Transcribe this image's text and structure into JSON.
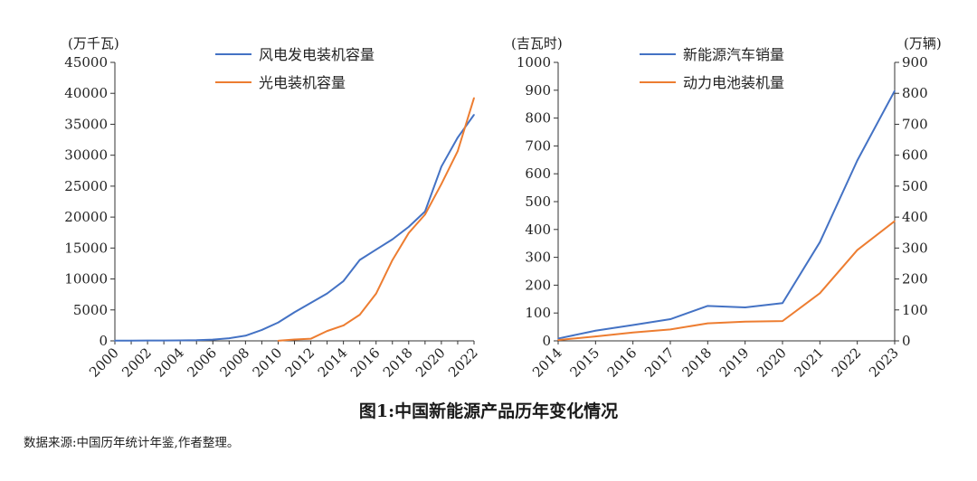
{
  "caption": "图1:中国新能源产品历年变化情况",
  "source": "数据来源:中国历年统计年鉴,作者整理。",
  "colors": {
    "blue": "#4472C4",
    "orange": "#ED7D31",
    "axis": "#333333"
  },
  "chart_data": [
    {
      "type": "line",
      "y_unit_label": "(万千瓦)",
      "ylim": [
        0,
        45000
      ],
      "y_ticks": [
        0,
        5000,
        10000,
        15000,
        20000,
        25000,
        30000,
        35000,
        40000,
        45000
      ],
      "x_ticks": [
        "2000",
        "2002",
        "2004",
        "2006",
        "2008",
        "2010",
        "2012",
        "2014",
        "2016",
        "2018",
        "2020",
        "2022"
      ],
      "x": [
        2000,
        2001,
        2002,
        2003,
        2004,
        2005,
        2006,
        2007,
        2008,
        2009,
        2010,
        2011,
        2012,
        2013,
        2014,
        2015,
        2016,
        2017,
        2018,
        2019,
        2020,
        2021,
        2022
      ],
      "legend_position": "top-center",
      "grid": false,
      "series": [
        {
          "name": "风电发电装机容量",
          "color": "#4472C4",
          "values": [
            34,
            40,
            47,
            55,
            76,
            106,
            207,
            420,
            839,
            1760,
            2958,
            4623,
            6142,
            7652,
            9657,
            13075,
            14747,
            16400,
            18426,
            20915,
            28153,
            32848,
            36544
          ]
        },
        {
          "name": "光电装机容量",
          "color": "#ED7D31",
          "values": [
            null,
            null,
            null,
            null,
            null,
            null,
            null,
            null,
            null,
            null,
            26,
            222,
            341,
            1589,
            2486,
            4218,
            7631,
            13042,
            17433,
            20418,
            25343,
            30656,
            39261
          ]
        }
      ]
    },
    {
      "type": "line",
      "y_unit_label": "(吉瓦时)",
      "y2_unit_label": "(万辆)",
      "ylim": [
        0,
        1000
      ],
      "y2lim": [
        0,
        900
      ],
      "y_ticks": [
        0,
        100,
        200,
        300,
        400,
        500,
        600,
        700,
        800,
        900,
        1000
      ],
      "y2_ticks": [
        0,
        100,
        200,
        300,
        400,
        500,
        600,
        700,
        800,
        900
      ],
      "x_ticks": [
        "2014",
        "2015",
        "2016",
        "2017",
        "2018",
        "2019",
        "2020",
        "2021",
        "2022",
        "2023"
      ],
      "x": [
        2014,
        2015,
        2016,
        2017,
        2018,
        2019,
        2020,
        2021,
        2022,
        2023
      ],
      "legend_position": "top-center",
      "grid": false,
      "series": [
        {
          "name": "新能源汽车销量",
          "color": "#4472C4",
          "axis": "right",
          "values": [
            7.5,
            33,
            51,
            70,
            113,
            108,
            122,
            319,
            583,
            808
          ]
        },
        {
          "name": "动力电池装机量",
          "color": "#ED7D31",
          "axis": "left",
          "values": [
            3,
            16,
            30,
            41,
            63,
            69,
            71,
            171,
            326,
            430
          ]
        }
      ]
    }
  ]
}
